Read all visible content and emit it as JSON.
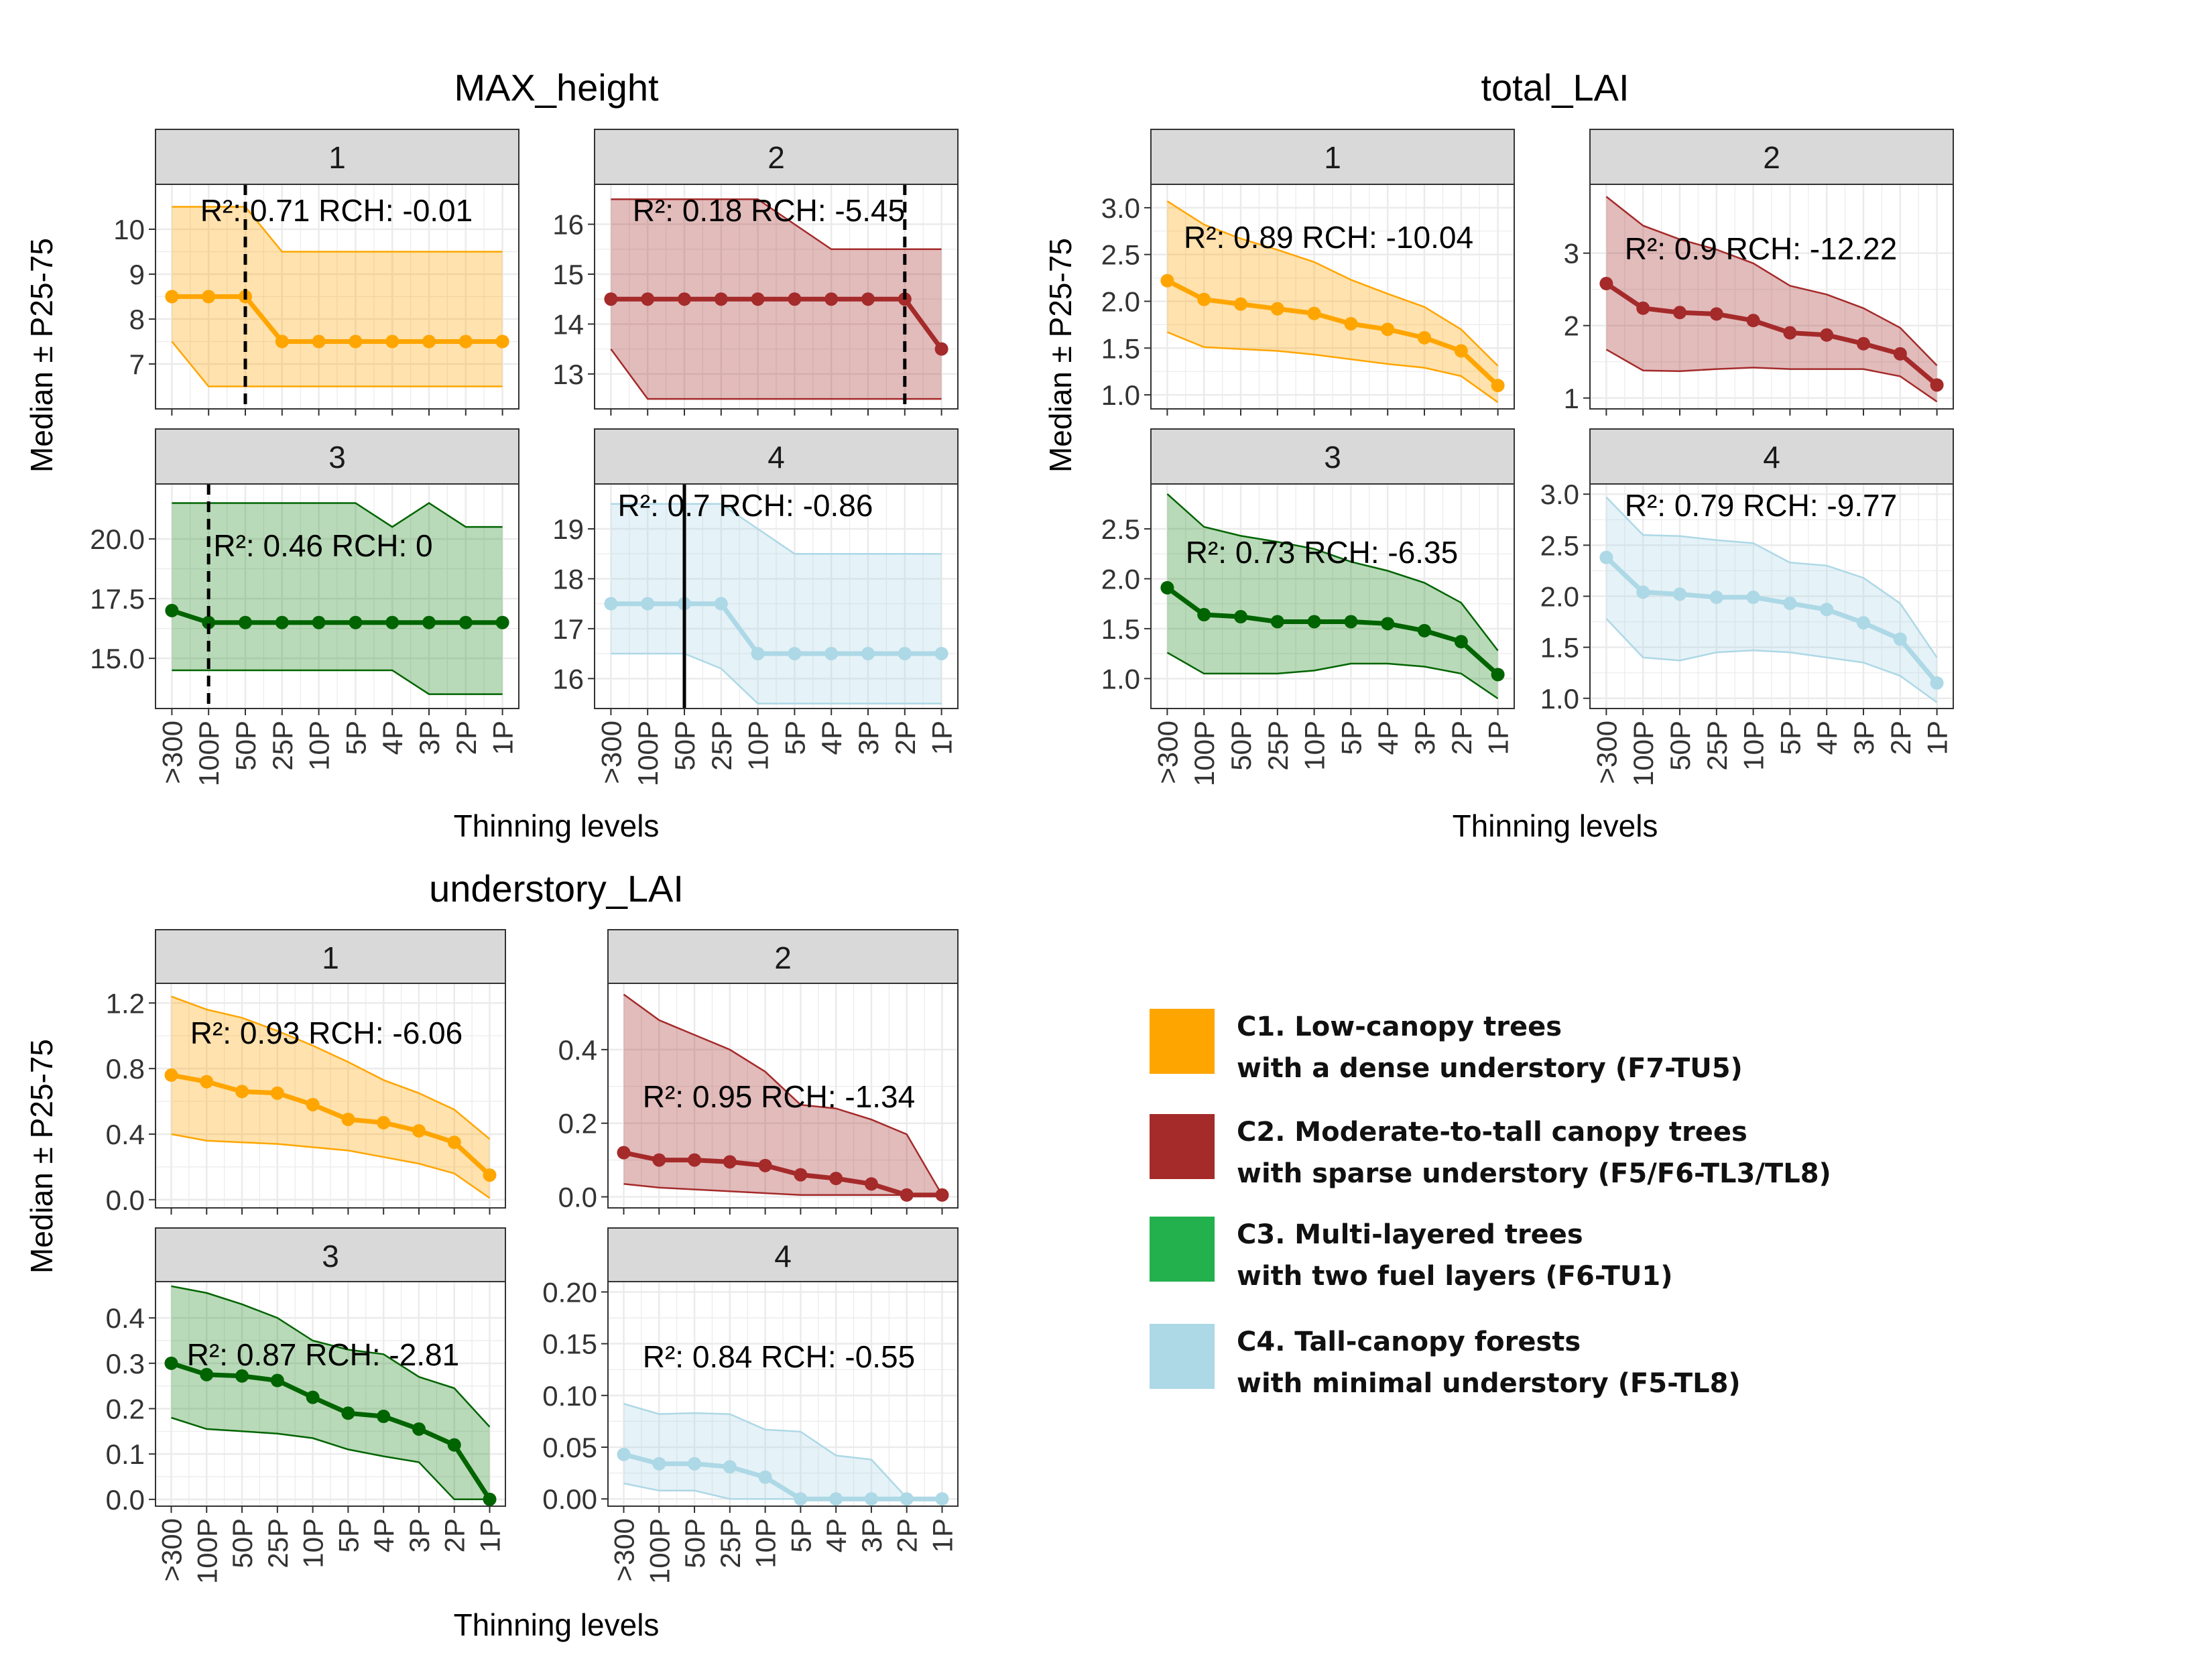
{
  "chart_data": [
    {
      "type": "line",
      "title": "MAX_height",
      "xlabel": "Thinning levels",
      "ylabel": "Median ± P25-75",
      "categories": [
        ">300",
        "100P",
        "50P",
        "25P",
        "10P",
        "5P",
        "4P",
        "3P",
        "2P",
        "1P"
      ],
      "panels": [
        {
          "panel": "1",
          "cluster": "C1",
          "ylim": [
            6.0,
            11.0
          ],
          "yticks": [
            7,
            8,
            9,
            10
          ],
          "annotation": "R²: 0.71 RCH: -0.01",
          "vline": {
            "category": "50P",
            "style": "dashed"
          },
          "median": [
            8.5,
            8.5,
            8.5,
            7.5,
            7.5,
            7.5,
            7.5,
            7.5,
            7.5,
            7.5
          ],
          "p25": [
            7.5,
            6.5,
            6.5,
            6.5,
            6.5,
            6.5,
            6.5,
            6.5,
            6.5,
            6.5
          ],
          "p75": [
            10.5,
            10.5,
            10.5,
            9.5,
            9.5,
            9.5,
            9.5,
            9.5,
            9.5,
            9.5
          ]
        },
        {
          "panel": "2",
          "cluster": "C2",
          "ylim": [
            12.3,
            16.8
          ],
          "yticks": [
            13,
            14,
            15,
            16
          ],
          "annotation": "R²: 0.18 RCH: -5.45",
          "vline": {
            "category": "2P",
            "style": "dashed"
          },
          "median": [
            14.5,
            14.5,
            14.5,
            14.5,
            14.5,
            14.5,
            14.5,
            14.5,
            14.5,
            13.5
          ],
          "p25": [
            13.5,
            12.5,
            12.5,
            12.5,
            12.5,
            12.5,
            12.5,
            12.5,
            12.5,
            12.5
          ],
          "p75": [
            16.5,
            16.5,
            16.5,
            16.5,
            16.5,
            16.0,
            15.5,
            15.5,
            15.5,
            15.5
          ]
        },
        {
          "panel": "3",
          "cluster": "C3",
          "ylim": [
            12.9,
            22.3
          ],
          "yticks": [
            15.0,
            17.5,
            20.0
          ],
          "annotation": "R²: 0.46 RCH: 0",
          "vline": {
            "category": "100P",
            "style": "dashed"
          },
          "median": [
            17.0,
            16.5,
            16.5,
            16.5,
            16.5,
            16.5,
            16.5,
            16.5,
            16.5,
            16.5
          ],
          "p25": [
            14.5,
            14.5,
            14.5,
            14.5,
            14.5,
            14.5,
            14.5,
            13.5,
            13.5,
            13.5
          ],
          "p75": [
            21.5,
            21.5,
            21.5,
            21.5,
            21.5,
            21.5,
            20.5,
            21.5,
            20.5,
            20.5
          ],
          "yticklabels": [
            "15.0",
            "17.5",
            "20.0"
          ]
        },
        {
          "panel": "4",
          "cluster": "C4",
          "ylim": [
            15.4,
            19.9
          ],
          "yticks": [
            16,
            17,
            18,
            19
          ],
          "annotation": "R²: 0.7 RCH: -0.86",
          "vline": {
            "category": "50P",
            "style": "solid"
          },
          "median": [
            17.5,
            17.5,
            17.5,
            17.5,
            16.5,
            16.5,
            16.5,
            16.5,
            16.5,
            16.5
          ],
          "p25": [
            16.5,
            16.5,
            16.5,
            16.2,
            15.5,
            15.5,
            15.5,
            15.5,
            15.5,
            15.5
          ],
          "p75": [
            19.5,
            19.5,
            19.5,
            19.5,
            19.0,
            18.5,
            18.5,
            18.5,
            18.5,
            18.5
          ]
        }
      ]
    },
    {
      "type": "line",
      "title": "total_LAI",
      "xlabel": "Thinning levels",
      "ylabel": "Median ± P25-75",
      "categories": [
        ">300",
        "100P",
        "50P",
        "25P",
        "10P",
        "5P",
        "4P",
        "3P",
        "2P",
        "1P"
      ],
      "panels": [
        {
          "panel": "1",
          "cluster": "C1",
          "ylim": [
            0.85,
            3.25
          ],
          "yticks": [
            1.0,
            1.5,
            2.0,
            2.5,
            3.0
          ],
          "yticklabels": [
            "1.0",
            "1.5",
            "2.0",
            "2.5",
            "3.0"
          ],
          "annotation": "R²: 0.89 RCH: -10.04",
          "median": [
            2.22,
            2.02,
            1.97,
            1.92,
            1.87,
            1.76,
            1.7,
            1.61,
            1.47,
            1.1
          ],
          "p25": [
            1.67,
            1.51,
            1.49,
            1.47,
            1.43,
            1.38,
            1.33,
            1.29,
            1.2,
            0.92
          ],
          "p75": [
            3.07,
            2.82,
            2.67,
            2.55,
            2.42,
            2.23,
            2.08,
            1.94,
            1.7,
            1.31
          ]
        },
        {
          "panel": "2",
          "cluster": "C2",
          "ylim": [
            0.85,
            3.95
          ],
          "yticks": [
            1,
            2,
            3
          ],
          "annotation": "R²: 0.9 RCH: -12.22",
          "median": [
            2.58,
            2.24,
            2.18,
            2.16,
            2.07,
            1.9,
            1.87,
            1.75,
            1.61,
            1.18
          ],
          "p25": [
            1.67,
            1.38,
            1.37,
            1.4,
            1.42,
            1.4,
            1.4,
            1.4,
            1.3,
            0.95
          ],
          "p75": [
            3.78,
            3.38,
            3.19,
            3.05,
            2.86,
            2.55,
            2.43,
            2.24,
            1.97,
            1.45
          ]
        },
        {
          "panel": "3",
          "cluster": "C3",
          "ylim": [
            0.7,
            2.95
          ],
          "yticks": [
            1.0,
            1.5,
            2.0,
            2.5
          ],
          "yticklabels": [
            "1.0",
            "1.5",
            "2.0",
            "2.5"
          ],
          "annotation": "R²: 0.73 RCH: -6.35",
          "median": [
            1.91,
            1.64,
            1.62,
            1.57,
            1.57,
            1.57,
            1.55,
            1.48,
            1.37,
            1.04
          ],
          "p25": [
            1.26,
            1.05,
            1.05,
            1.05,
            1.08,
            1.15,
            1.15,
            1.12,
            1.05,
            0.8
          ],
          "p75": [
            2.85,
            2.52,
            2.43,
            2.37,
            2.3,
            2.17,
            2.08,
            1.96,
            1.76,
            1.28
          ]
        },
        {
          "panel": "4",
          "cluster": "C4",
          "ylim": [
            0.9,
            3.1
          ],
          "yticks": [
            1.0,
            1.5,
            2.0,
            2.5,
            3.0
          ],
          "yticklabels": [
            "1.0",
            "1.5",
            "2.0",
            "2.5",
            "3.0"
          ],
          "annotation": "R²: 0.79 RCH: -9.77",
          "median": [
            2.38,
            2.04,
            2.02,
            1.99,
            1.99,
            1.93,
            1.87,
            1.74,
            1.58,
            1.15
          ],
          "p25": [
            1.78,
            1.4,
            1.37,
            1.45,
            1.47,
            1.45,
            1.4,
            1.35,
            1.22,
            0.96
          ],
          "p75": [
            2.97,
            2.6,
            2.59,
            2.55,
            2.52,
            2.33,
            2.3,
            2.18,
            1.93,
            1.4
          ]
        }
      ]
    },
    {
      "type": "line",
      "title": "understory_LAI",
      "xlabel": "Thinning levels",
      "ylabel": "Median ± P25-75",
      "categories": [
        ">300",
        "100P",
        "50P",
        "25P",
        "10P",
        "5P",
        "4P",
        "3P",
        "2P",
        "1P"
      ],
      "panels": [
        {
          "panel": "1",
          "cluster": "C1",
          "ylim": [
            -0.05,
            1.32
          ],
          "yticks": [
            0.0,
            0.4,
            0.8,
            1.2
          ],
          "yticklabels": [
            "0.0",
            "0.4",
            "0.8",
            "1.2"
          ],
          "annotation": "R²: 0.93 RCH: -6.06",
          "median": [
            0.76,
            0.72,
            0.66,
            0.65,
            0.58,
            0.49,
            0.47,
            0.42,
            0.35,
            0.15
          ],
          "p25": [
            0.4,
            0.36,
            0.35,
            0.34,
            0.32,
            0.3,
            0.26,
            0.22,
            0.16,
            0.01
          ],
          "p75": [
            1.24,
            1.16,
            1.11,
            1.03,
            0.94,
            0.84,
            0.73,
            0.65,
            0.55,
            0.37
          ]
        },
        {
          "panel": "2",
          "cluster": "C2",
          "ylim": [
            -0.03,
            0.58
          ],
          "yticks": [
            0.0,
            0.2,
            0.4
          ],
          "yticklabels": [
            "0.0",
            "0.2",
            "0.4"
          ],
          "annotation": "R²: 0.95 RCH: -1.34",
          "median": [
            0.12,
            0.1,
            0.1,
            0.095,
            0.085,
            0.06,
            0.05,
            0.035,
            0.005,
            0.005
          ],
          "p25": [
            0.035,
            0.025,
            0.02,
            0.015,
            0.01,
            0.005,
            0.005,
            0.005,
            0.005,
            0.005
          ],
          "p75": [
            0.55,
            0.48,
            0.44,
            0.4,
            0.34,
            0.25,
            0.24,
            0.21,
            0.17,
            0.005
          ]
        },
        {
          "panel": "3",
          "cluster": "C3",
          "ylim": [
            -0.015,
            0.48
          ],
          "yticks": [
            0.0,
            0.1,
            0.2,
            0.3,
            0.4
          ],
          "yticklabels": [
            "0.0",
            "0.1",
            "0.2",
            "0.3",
            "0.4"
          ],
          "annotation": "R²: 0.87 RCH: -2.81",
          "median": [
            0.3,
            0.275,
            0.272,
            0.262,
            0.225,
            0.19,
            0.183,
            0.155,
            0.12,
            0.0
          ],
          "p25": [
            0.18,
            0.155,
            0.15,
            0.145,
            0.135,
            0.11,
            0.095,
            0.082,
            0.0,
            0.0
          ],
          "p75": [
            0.47,
            0.455,
            0.43,
            0.4,
            0.35,
            0.33,
            0.32,
            0.27,
            0.245,
            0.16
          ]
        },
        {
          "panel": "4",
          "cluster": "C4",
          "ylim": [
            -0.007,
            0.21
          ],
          "yticks": [
            0.0,
            0.05,
            0.1,
            0.15,
            0.2
          ],
          "yticklabels": [
            "0.00",
            "0.05",
            "0.10",
            "0.15",
            "0.20"
          ],
          "annotation": "R²: 0.84 RCH: -0.55",
          "median": [
            0.043,
            0.034,
            0.034,
            0.031,
            0.021,
            0.0,
            0.0,
            0.0,
            0.0,
            0.0
          ],
          "p25": [
            0.015,
            0.008,
            0.008,
            0.0,
            0.0,
            0.0,
            0.0,
            0.0,
            0.0,
            0.0
          ],
          "p75": [
            0.092,
            0.082,
            0.083,
            0.082,
            0.067,
            0.065,
            0.042,
            0.038,
            0.001,
            0.0
          ]
        }
      ]
    }
  ],
  "legend": [
    {
      "cluster": "C1",
      "line1": "C1. Low-canopy trees",
      "line2": "with a dense understory (F7-TU5)",
      "color": "#FFA500"
    },
    {
      "cluster": "C2",
      "line1": "C2. Moderate-to-tall canopy trees",
      "line2": "with sparse understory (F5/F6-TL3/TL8)",
      "color": "#A52A2A"
    },
    {
      "cluster": "C3",
      "line1": "C3. Multi-layered trees",
      "line2": "with two fuel layers (F6-TU1)",
      "color": "#22B14C"
    },
    {
      "cluster": "C4",
      "line1": "C4. Tall-canopy forests",
      "line2": "with minimal understory (F5-TL8)",
      "color": "#ADD8E6"
    }
  ],
  "colors": {
    "C1": {
      "line": "#FFA500",
      "fill": "#FFA500"
    },
    "C2": {
      "line": "#A52A2A",
      "fill": "#A52A2A"
    },
    "C3": {
      "line": "#006400",
      "fill": "#228B22"
    },
    "C4": {
      "line": "#ADD8E6",
      "fill": "#ADD8E6"
    },
    "strip_bg": "#D9D9D9",
    "grid": "#EBEBEB",
    "panel_border": "#333333"
  }
}
